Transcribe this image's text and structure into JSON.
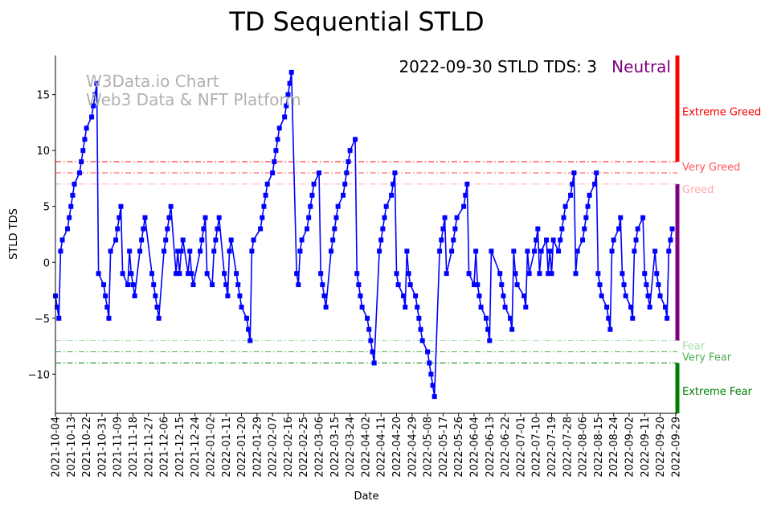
{
  "chart_data": {
    "type": "line",
    "title": "TD Sequential STLD",
    "xlabel": "Date",
    "ylabel": "STLD TDS",
    "status_text": "2022-09-30 STLD TDS: 3",
    "status_label": "Neutral",
    "watermark": [
      "W3Data.io Chart",
      "Web3 Data & NFT Platform"
    ],
    "ylim": [
      -13.5,
      18.5
    ],
    "yticks": [
      -10,
      -5,
      0,
      5,
      10,
      15
    ],
    "xlim": [
      0,
      361
    ],
    "xticks": [
      {
        "x": 0,
        "label": "2021-10-04"
      },
      {
        "x": 9,
        "label": "2021-10-13"
      },
      {
        "x": 18,
        "label": "2021-10-22"
      },
      {
        "x": 27,
        "label": "2021-10-31"
      },
      {
        "x": 36,
        "label": "2021-11-09"
      },
      {
        "x": 45,
        "label": "2021-11-18"
      },
      {
        "x": 54,
        "label": "2021-11-27"
      },
      {
        "x": 63,
        "label": "2021-12-06"
      },
      {
        "x": 72,
        "label": "2021-12-15"
      },
      {
        "x": 81,
        "label": "2021-12-24"
      },
      {
        "x": 90,
        "label": "2022-01-02"
      },
      {
        "x": 99,
        "label": "2022-01-11"
      },
      {
        "x": 108,
        "label": "2022-01-20"
      },
      {
        "x": 117,
        "label": "2022-01-29"
      },
      {
        "x": 126,
        "label": "2022-02-07"
      },
      {
        "x": 135,
        "label": "2022-02-16"
      },
      {
        "x": 144,
        "label": "2022-02-25"
      },
      {
        "x": 153,
        "label": "2022-03-06"
      },
      {
        "x": 162,
        "label": "2022-03-15"
      },
      {
        "x": 171,
        "label": "2022-03-24"
      },
      {
        "x": 180,
        "label": "2022-04-02"
      },
      {
        "x": 189,
        "label": "2022-04-11"
      },
      {
        "x": 198,
        "label": "2022-04-20"
      },
      {
        "x": 207,
        "label": "2022-04-29"
      },
      {
        "x": 216,
        "label": "2022-05-08"
      },
      {
        "x": 225,
        "label": "2022-05-17"
      },
      {
        "x": 234,
        "label": "2022-05-26"
      },
      {
        "x": 243,
        "label": "2022-06-04"
      },
      {
        "x": 252,
        "label": "2022-06-13"
      },
      {
        "x": 261,
        "label": "2022-06-22"
      },
      {
        "x": 270,
        "label": "2022-07-01"
      },
      {
        "x": 279,
        "label": "2022-07-10"
      },
      {
        "x": 288,
        "label": "2022-07-19"
      },
      {
        "x": 297,
        "label": "2022-07-28"
      },
      {
        "x": 306,
        "label": "2022-08-06"
      },
      {
        "x": 315,
        "label": "2022-08-15"
      },
      {
        "x": 324,
        "label": "2022-08-24"
      },
      {
        "x": 333,
        "label": "2022-09-02"
      },
      {
        "x": 342,
        "label": "2022-09-11"
      },
      {
        "x": 351,
        "label": "2022-09-20"
      },
      {
        "x": 360,
        "label": "2022-09-29"
      }
    ],
    "thresholds": [
      {
        "value": 9,
        "color": "#ff0000",
        "label": "Very Greed",
        "label_color": "#ff5555"
      },
      {
        "value": 8,
        "color": "#ff4d4d",
        "label": "",
        "label_color": "#ff5555"
      },
      {
        "value": 7,
        "color": "#ffaaaa",
        "label": "Greed",
        "label_color": "#ffaaaa"
      },
      {
        "value": -7,
        "color": "#a8dca8",
        "label": "Fear",
        "label_color": "#a8dca8"
      },
      {
        "value": -8,
        "color": "#4caf50",
        "label": "Very Fear",
        "label_color": "#4caf50"
      },
      {
        "value": -9,
        "color": "#008000",
        "label": "",
        "label_color": "#008000"
      }
    ],
    "zones": [
      {
        "from": 9,
        "to": 18.5,
        "color": "#ff0000",
        "label": "Extreme Greed",
        "label_value": 13.5
      },
      {
        "from": -7,
        "to": 7,
        "color": "#800080",
        "label": "",
        "label_value": 0
      },
      {
        "from": -13.5,
        "to": -9,
        "color": "#008000",
        "label": "Extreme Fear",
        "label_value": -11.5
      }
    ],
    "colors": {
      "line": "#0000ff",
      "marker": "#0000ff",
      "status_label": "#800080",
      "watermark": "#b0b0b0"
    },
    "series": [
      {
        "name": "STLD TDS",
        "points": [
          [
            0,
            -3
          ],
          [
            1,
            -4
          ],
          [
            2,
            -5
          ],
          [
            3,
            1
          ],
          [
            4,
            2
          ],
          [
            7,
            3
          ],
          [
            8,
            4
          ],
          [
            9,
            5
          ],
          [
            10,
            6
          ],
          [
            11,
            7
          ],
          [
            14,
            8
          ],
          [
            15,
            9
          ],
          [
            16,
            10
          ],
          [
            17,
            11
          ],
          [
            18,
            12
          ],
          [
            21,
            13
          ],
          [
            22,
            14
          ],
          [
            23,
            15
          ],
          [
            24,
            16
          ],
          [
            25,
            -1
          ],
          [
            28,
            -2
          ],
          [
            29,
            -3
          ],
          [
            30,
            -4
          ],
          [
            31,
            -5
          ],
          [
            32,
            1
          ],
          [
            35,
            2
          ],
          [
            36,
            3
          ],
          [
            37,
            4
          ],
          [
            38,
            5
          ],
          [
            39,
            -1
          ],
          [
            42,
            -2
          ],
          [
            43,
            1
          ],
          [
            44,
            -1
          ],
          [
            45,
            -2
          ],
          [
            46,
            -3
          ],
          [
            49,
            1
          ],
          [
            50,
            2
          ],
          [
            51,
            3
          ],
          [
            52,
            4
          ],
          [
            56,
            -1
          ],
          [
            57,
            -2
          ],
          [
            58,
            -3
          ],
          [
            59,
            -4
          ],
          [
            60,
            -5
          ],
          [
            63,
            1
          ],
          [
            64,
            2
          ],
          [
            65,
            3
          ],
          [
            66,
            4
          ],
          [
            67,
            5
          ],
          [
            70,
            -1
          ],
          [
            71,
            1
          ],
          [
            72,
            -1
          ],
          [
            73,
            1
          ],
          [
            74,
            2
          ],
          [
            77,
            -1
          ],
          [
            78,
            1
          ],
          [
            79,
            -1
          ],
          [
            80,
            -2
          ],
          [
            84,
            1
          ],
          [
            85,
            2
          ],
          [
            86,
            3
          ],
          [
            87,
            4
          ],
          [
            88,
            -1
          ],
          [
            91,
            -2
          ],
          [
            92,
            1
          ],
          [
            93,
            2
          ],
          [
            94,
            3
          ],
          [
            95,
            4
          ],
          [
            98,
            -1
          ],
          [
            99,
            -2
          ],
          [
            100,
            -3
          ],
          [
            101,
            1
          ],
          [
            102,
            2
          ],
          [
            105,
            -1
          ],
          [
            106,
            -2
          ],
          [
            107,
            -3
          ],
          [
            108,
            -4
          ],
          [
            111,
            -5
          ],
          [
            112,
            -6
          ],
          [
            113,
            -7
          ],
          [
            114,
            1
          ],
          [
            115,
            2
          ],
          [
            119,
            3
          ],
          [
            120,
            4
          ],
          [
            121,
            5
          ],
          [
            122,
            6
          ],
          [
            123,
            7
          ],
          [
            126,
            8
          ],
          [
            127,
            9
          ],
          [
            128,
            10
          ],
          [
            129,
            11
          ],
          [
            130,
            12
          ],
          [
            133,
            13
          ],
          [
            134,
            14
          ],
          [
            135,
            15
          ],
          [
            136,
            16
          ],
          [
            137,
            17
          ],
          [
            140,
            -1
          ],
          [
            141,
            -2
          ],
          [
            142,
            1
          ],
          [
            143,
            2
          ],
          [
            146,
            3
          ],
          [
            147,
            4
          ],
          [
            148,
            5
          ],
          [
            149,
            6
          ],
          [
            150,
            7
          ],
          [
            153,
            8
          ],
          [
            154,
            -1
          ],
          [
            155,
            -2
          ],
          [
            156,
            -3
          ],
          [
            157,
            -4
          ],
          [
            160,
            1
          ],
          [
            161,
            2
          ],
          [
            162,
            3
          ],
          [
            163,
            4
          ],
          [
            164,
            5
          ],
          [
            167,
            6
          ],
          [
            168,
            7
          ],
          [
            169,
            8
          ],
          [
            170,
            9
          ],
          [
            171,
            10
          ],
          [
            174,
            11
          ],
          [
            175,
            -1
          ],
          [
            176,
            -2
          ],
          [
            177,
            -3
          ],
          [
            178,
            -4
          ],
          [
            181,
            -5
          ],
          [
            182,
            -6
          ],
          [
            183,
            -7
          ],
          [
            184,
            -8
          ],
          [
            185,
            -9
          ],
          [
            188,
            1
          ],
          [
            189,
            2
          ],
          [
            190,
            3
          ],
          [
            191,
            4
          ],
          [
            192,
            5
          ],
          [
            195,
            6
          ],
          [
            196,
            7
          ],
          [
            197,
            8
          ],
          [
            198,
            -1
          ],
          [
            199,
            -2
          ],
          [
            202,
            -3
          ],
          [
            203,
            -4
          ],
          [
            204,
            1
          ],
          [
            205,
            -1
          ],
          [
            206,
            -2
          ],
          [
            209,
            -3
          ],
          [
            210,
            -4
          ],
          [
            211,
            -5
          ],
          [
            212,
            -6
          ],
          [
            213,
            -7
          ],
          [
            216,
            -8
          ],
          [
            217,
            -9
          ],
          [
            218,
            -10
          ],
          [
            219,
            -11
          ],
          [
            220,
            -12
          ],
          [
            223,
            1
          ],
          [
            224,
            2
          ],
          [
            225,
            3
          ],
          [
            226,
            4
          ],
          [
            227,
            -1
          ],
          [
            230,
            1
          ],
          [
            231,
            2
          ],
          [
            232,
            3
          ],
          [
            233,
            4
          ],
          [
            237,
            5
          ],
          [
            238,
            6
          ],
          [
            239,
            7
          ],
          [
            240,
            -1
          ],
          [
            243,
            -2
          ],
          [
            244,
            1
          ],
          [
            245,
            -2
          ],
          [
            246,
            -3
          ],
          [
            247,
            -4
          ],
          [
            250,
            -5
          ],
          [
            251,
            -6
          ],
          [
            252,
            -7
          ],
          [
            253,
            1
          ],
          [
            258,
            -1
          ],
          [
            259,
            -2
          ],
          [
            260,
            -3
          ],
          [
            261,
            -4
          ],
          [
            264,
            -5
          ],
          [
            265,
            -6
          ],
          [
            266,
            1
          ],
          [
            267,
            -1
          ],
          [
            268,
            -2
          ],
          [
            272,
            -3
          ],
          [
            273,
            -4
          ],
          [
            274,
            1
          ],
          [
            275,
            -1
          ],
          [
            278,
            1
          ],
          [
            279,
            2
          ],
          [
            280,
            3
          ],
          [
            281,
            -1
          ],
          [
            282,
            1
          ],
          [
            285,
            2
          ],
          [
            286,
            -1
          ],
          [
            287,
            1
          ],
          [
            288,
            -1
          ],
          [
            289,
            2
          ],
          [
            292,
            1
          ],
          [
            293,
            2
          ],
          [
            294,
            3
          ],
          [
            295,
            4
          ],
          [
            296,
            5
          ],
          [
            299,
            6
          ],
          [
            300,
            7
          ],
          [
            301,
            8
          ],
          [
            302,
            -1
          ],
          [
            303,
            1
          ],
          [
            306,
            2
          ],
          [
            307,
            3
          ],
          [
            308,
            4
          ],
          [
            309,
            5
          ],
          [
            310,
            6
          ],
          [
            313,
            7
          ],
          [
            314,
            8
          ],
          [
            315,
            -1
          ],
          [
            316,
            -2
          ],
          [
            317,
            -3
          ],
          [
            320,
            -4
          ],
          [
            321,
            -5
          ],
          [
            322,
            -6
          ],
          [
            323,
            1
          ],
          [
            324,
            2
          ],
          [
            327,
            3
          ],
          [
            328,
            4
          ],
          [
            329,
            -1
          ],
          [
            330,
            -2
          ],
          [
            331,
            -3
          ],
          [
            334,
            -4
          ],
          [
            335,
            -5
          ],
          [
            336,
            1
          ],
          [
            337,
            2
          ],
          [
            338,
            3
          ],
          [
            341,
            4
          ],
          [
            342,
            -1
          ],
          [
            343,
            -2
          ],
          [
            344,
            -3
          ],
          [
            345,
            -4
          ],
          [
            348,
            1
          ],
          [
            349,
            -1
          ],
          [
            350,
            -2
          ],
          [
            351,
            -3
          ],
          [
            354,
            -4
          ],
          [
            355,
            -5
          ],
          [
            356,
            1
          ],
          [
            357,
            2
          ],
          [
            358,
            3
          ]
        ]
      }
    ]
  }
}
